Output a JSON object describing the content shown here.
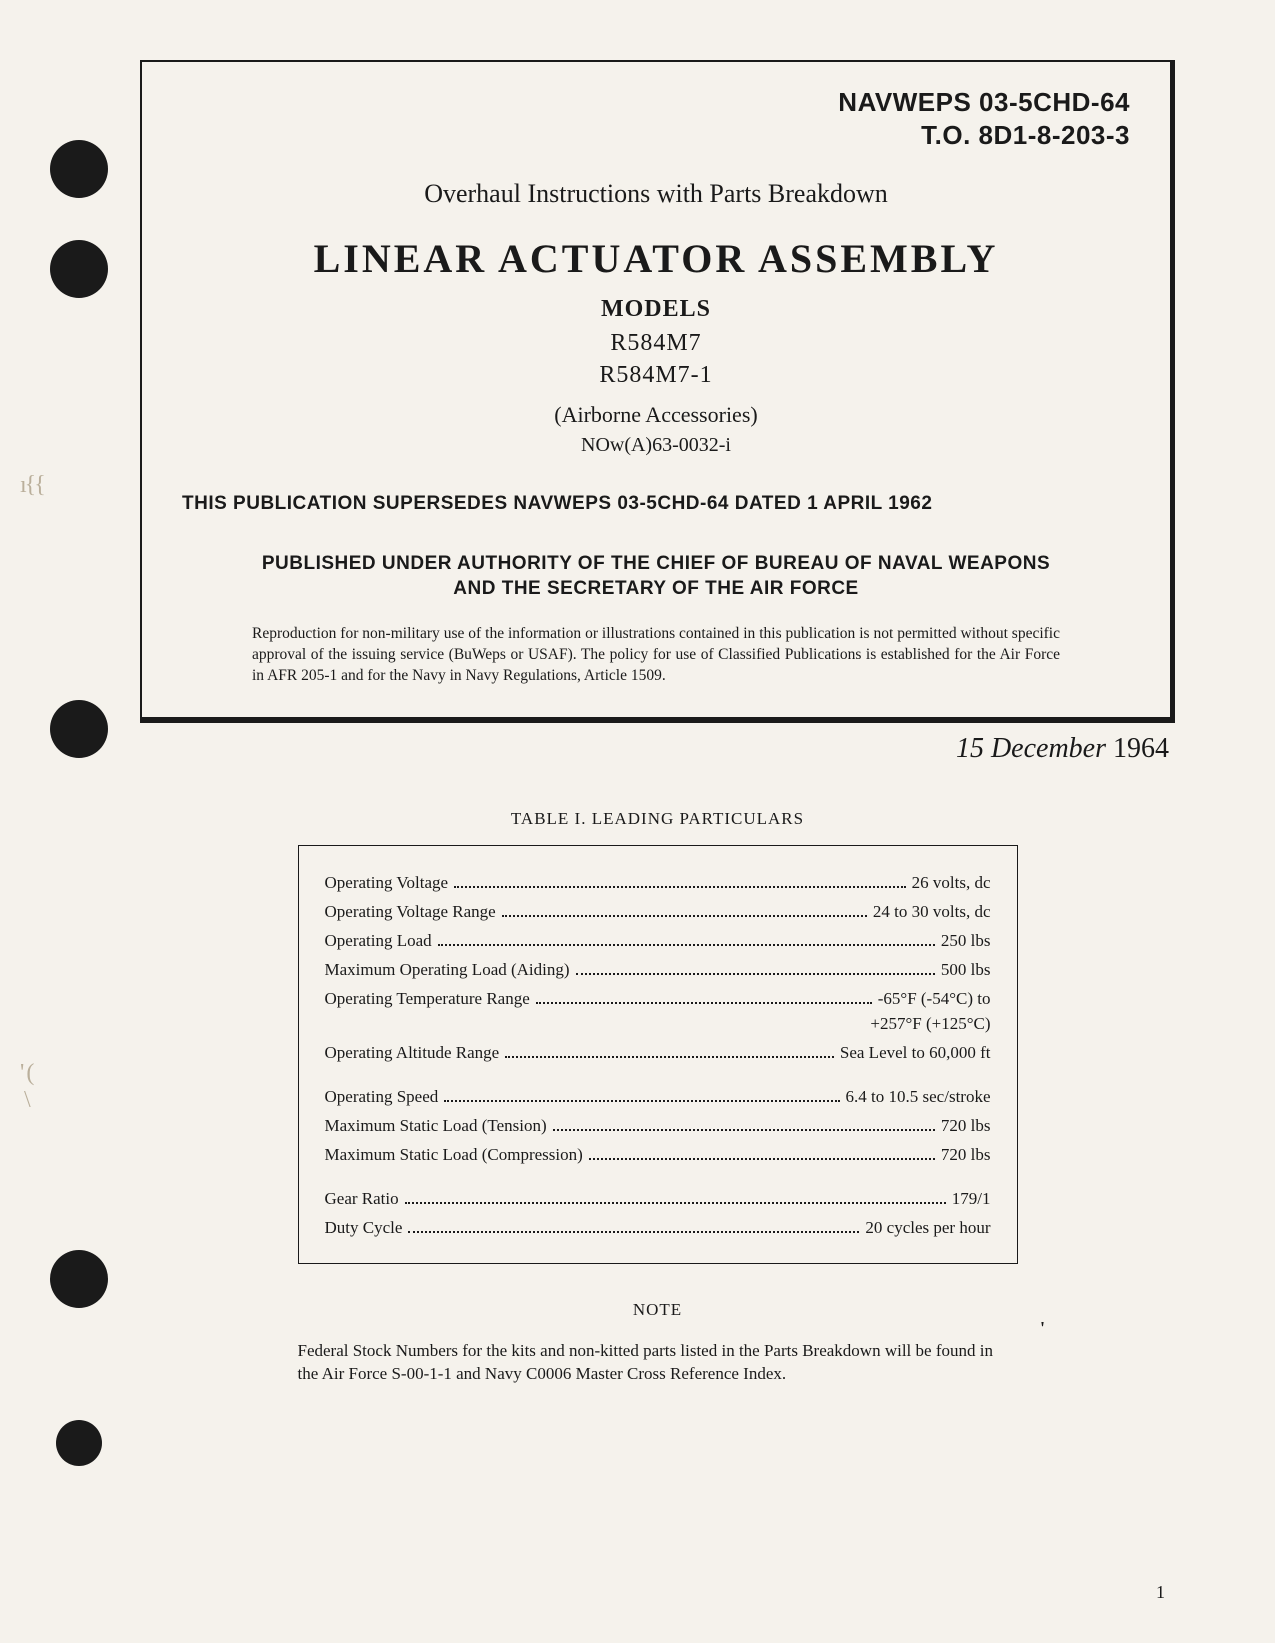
{
  "doc_id": {
    "line1": "NAVWEPS 03-5CHD-64",
    "line2": "T.O. 8D1-8-203-3"
  },
  "header": {
    "subtitle": "Overhaul Instructions with Parts Breakdown",
    "main_title": "LINEAR ACTUATOR ASSEMBLY",
    "models_label": "MODELS",
    "model_1": "R584M7",
    "model_2": "R584M7-1",
    "airborne": "(Airborne Accessories)",
    "now_code": "NOw(A)63-0032-i",
    "supersedes": "THIS PUBLICATION SUPERSEDES NAVWEPS 03-5CHD-64 DATED 1 APRIL 1962",
    "authority_1": "PUBLISHED UNDER AUTHORITY OF THE CHIEF OF BUREAU OF NAVAL WEAPONS",
    "authority_2": "AND THE SECRETARY OF THE AIR FORCE",
    "repro": "Reproduction for non-military use of the information or illustrations contained in this publication is not permitted without specific approval of the issuing service (BuWeps or USAF). The policy for use of Classified Publications is established for the Air Force in AFR 205-1 and for the Navy in Navy Regulations, Article 1509."
  },
  "pub_date": {
    "text": "15 December",
    "year": "1964"
  },
  "table": {
    "title": "TABLE I.  LEADING PARTICULARS",
    "rows": [
      {
        "label": "Operating Voltage",
        "value": "26 volts, dc"
      },
      {
        "label": "Operating Voltage Range",
        "value": "24 to 30 volts, dc"
      },
      {
        "label": "Operating Load",
        "value": "250 lbs"
      },
      {
        "label": "Maximum Operating Load (Aiding)",
        "value": "500 lbs"
      },
      {
        "label": "Operating Temperature Range",
        "value": "-65°F (-54°C) to"
      },
      {
        "label": "",
        "value": "+257°F (+125°C)",
        "cont": true
      },
      {
        "label": "Operating Altitude Range",
        "value": "Sea Level to 60,000 ft",
        "gap_after": true
      },
      {
        "label": "Operating Speed",
        "value": "6.4 to 10.5 sec/stroke"
      },
      {
        "label": "Maximum Static Load (Tension)",
        "value": "720 lbs"
      },
      {
        "label": "Maximum Static Load (Compression)",
        "value": "720 lbs",
        "gap_after": true
      },
      {
        "label": "Gear Ratio",
        "value": "179/1"
      },
      {
        "label": "Duty Cycle",
        "value": "20 cycles per hour"
      }
    ]
  },
  "note": {
    "label": "NOTE",
    "text": "Federal Stock Numbers for the kits and non-kitted parts listed in the Parts Breakdown will be found in the Air Force S-00-1-1 and Navy C0006 Master Cross Reference Index."
  },
  "page_number": "1",
  "colors": {
    "background": "#f5f2ec",
    "text": "#1a1a1a",
    "smudge": "#8a7a5a"
  }
}
